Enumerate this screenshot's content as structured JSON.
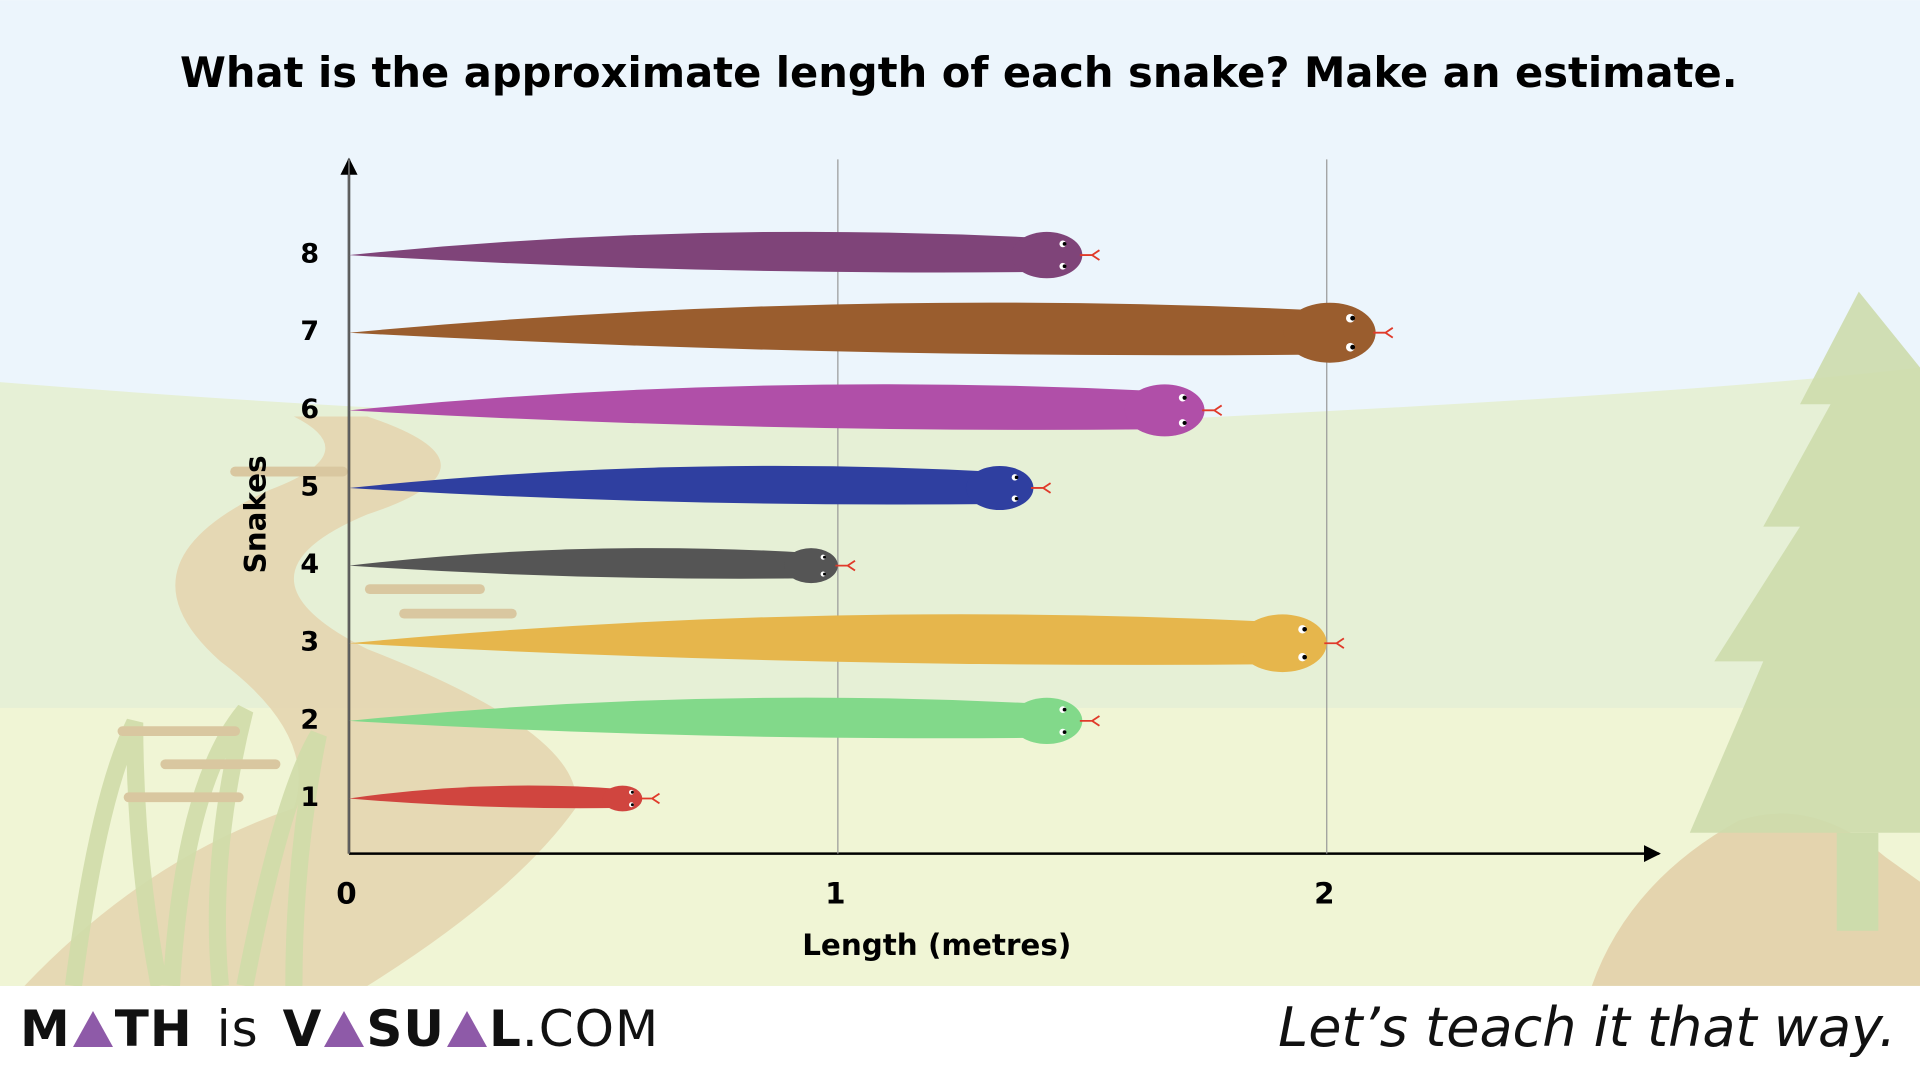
{
  "chart_data": {
    "type": "bar",
    "orientation": "horizontal",
    "title": "What is the approximate length of each snake? Make an estimate.",
    "x_label": "Length (metres)",
    "y_label": "Snakes",
    "categories": [
      "1",
      "2",
      "3",
      "4",
      "5",
      "6",
      "7",
      "8"
    ],
    "values": [
      0.6,
      1.5,
      2.0,
      1.0,
      1.4,
      1.75,
      2.1,
      1.5
    ],
    "colors": [
      "#d0453f",
      "#82d98a",
      "#e6b64c",
      "#555555",
      "#2f3fa0",
      "#b04fa8",
      "#9a5d2e",
      "#7f4479"
    ],
    "xlim": [
      0,
      2.68
    ],
    "xticks": [
      0,
      1,
      2
    ],
    "grid": true
  },
  "footer": {
    "logo_parts": [
      "M",
      "TH",
      "is",
      "V",
      "SU",
      "L",
      ".COM"
    ],
    "tagline": "Let’s teach it that way."
  }
}
